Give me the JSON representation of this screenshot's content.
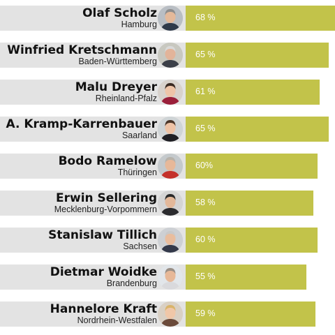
{
  "chart_data": {
    "type": "bar",
    "orientation": "horizontal",
    "bar_color": "#c2c34a",
    "label_background": "#e3e3e3",
    "value_suffix": " %",
    "categories": [
      {
        "name": "Olaf Scholz",
        "state": "Hamburg"
      },
      {
        "name": "Winfried Kretschmann",
        "state": "Baden-Württemberg"
      },
      {
        "name": "Malu Dreyer",
        "state": "Rheinland-Pfalz"
      },
      {
        "name": "A. Kramp-Karrenbauer",
        "state": "Saarland"
      },
      {
        "name": "Bodo Ramelow",
        "state": "Thüringen"
      },
      {
        "name": "Erwin Sellering",
        "state": "Mecklenburg-Vorpommern"
      },
      {
        "name": "Stanislaw Tillich",
        "state": "Sachsen"
      },
      {
        "name": "Dietmar Woidke",
        "state": "Brandenburg"
      },
      {
        "name": "Hannelore Kraft",
        "state": "Nordrhein-Westfalen"
      }
    ],
    "value_labels": [
      "68 %",
      "65 %",
      "61 %",
      "65 %",
      "60%",
      "58 %",
      "60 %",
      "55 %",
      "59 %"
    ],
    "values": [
      68,
      65,
      61,
      65,
      60,
      58,
      60,
      55,
      59
    ],
    "xlim": [
      0,
      68
    ],
    "avatar_icons": [
      "person-photo-icon",
      "person-photo-icon",
      "person-photo-icon",
      "person-photo-icon",
      "person-photo-icon",
      "person-photo-icon",
      "person-photo-icon",
      "person-photo-icon",
      "person-photo-icon"
    ],
    "avatar_colors": [
      {
        "bg": "#b9bec4",
        "skin": "#e4b99a",
        "hair": "#8d8d8d",
        "shirt": "#2f3a4a"
      },
      {
        "bg": "#c8c8c0",
        "skin": "#e2b49a",
        "hair": "#d9d9d9",
        "shirt": "#3b3f48"
      },
      {
        "bg": "#d8d2cc",
        "skin": "#eec4a8",
        "hair": "#3a2a22",
        "shirt": "#9a1f3a"
      },
      {
        "bg": "#cfd4d6",
        "skin": "#eec3a6",
        "hair": "#4a3528",
        "shirt": "#1f1f24"
      },
      {
        "bg": "#c4c9cc",
        "skin": "#e7b899",
        "hair": "#b7b2aa",
        "shirt": "#c4312b"
      },
      {
        "bg": "#d4d4d4",
        "skin": "#e3b89a",
        "hair": "#2a2a2a",
        "shirt": "#2b2b2e"
      },
      {
        "bg": "#cdd0d4",
        "skin": "#e9bd9e",
        "hair": "#c9c9c9",
        "shirt": "#33394a"
      },
      {
        "bg": "#e2e6ea",
        "skin": "#e7b898",
        "hair": "#9a8f86",
        "shirt": "#d9d9dc"
      },
      {
        "bg": "#d9d0c4",
        "skin": "#f0c7a8",
        "hair": "#d9b46a",
        "shirt": "#6b4a3a"
      }
    ]
  }
}
